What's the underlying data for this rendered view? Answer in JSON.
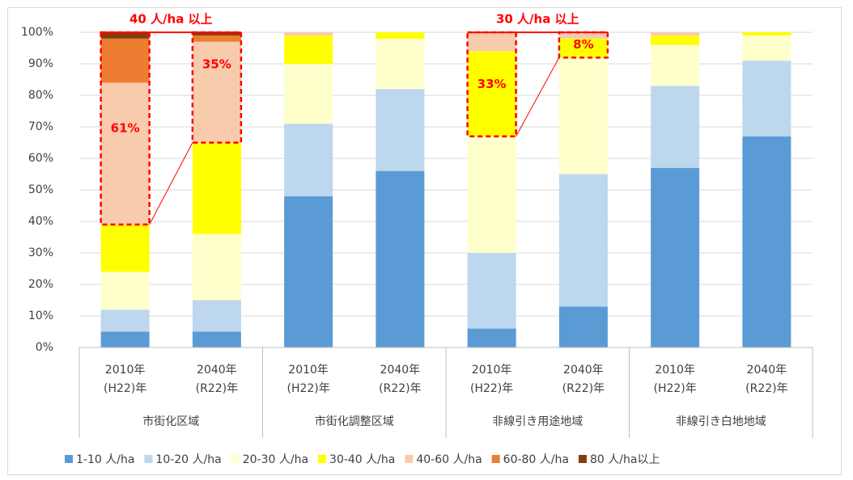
{
  "chart_data": {
    "type": "stacked_bar_100",
    "groups": [
      "市街化区域",
      "市街化調整区域",
      "非線引き用途地域",
      "非線引き白地地域"
    ],
    "categories": [
      [
        "2010年",
        "(H22)年"
      ],
      [
        "2040年",
        "(R22)年"
      ],
      [
        "2010年",
        "(H22)年"
      ],
      [
        "2040年",
        "(R22)年"
      ],
      [
        "2010年",
        "(H22)年"
      ],
      [
        "2040年",
        "(R22)年"
      ],
      [
        "2010年",
        "(H22)年"
      ],
      [
        "2040年",
        "(R22)年"
      ]
    ],
    "series": [
      {
        "name": "1-10 人/ha",
        "color": "#5b9bd5",
        "values": [
          5,
          5,
          48,
          56,
          6,
          13,
          57,
          67
        ]
      },
      {
        "name": "10-20 人/ha",
        "color": "#bdd7ee",
        "values": [
          7,
          10,
          23,
          26,
          24,
          42,
          26,
          24
        ]
      },
      {
        "name": "20-30 人/ha",
        "color": "#ffffcc",
        "values": [
          12,
          21,
          19,
          16,
          37,
          37,
          13,
          8
        ]
      },
      {
        "name": "30-40 人/ha",
        "color": "#ffff00",
        "values": [
          15,
          29,
          9,
          2,
          27,
          6,
          3,
          1
        ]
      },
      {
        "name": "40-60 人/ha",
        "color": "#f8cbad",
        "values": [
          45,
          32,
          1,
          0,
          6,
          2,
          1,
          0
        ]
      },
      {
        "name": "60-80 人/ha",
        "color": "#ed7d31",
        "values": [
          14,
          2,
          0,
          0,
          0,
          0,
          0,
          0
        ]
      },
      {
        "name": "80 人/ha以上",
        "color": "#843c0c",
        "values": [
          2,
          1,
          0,
          0,
          0,
          0,
          0,
          0
        ]
      }
    ],
    "ylim": [
      0,
      100
    ],
    "yticks": [
      {
        "value": 0,
        "label": "0%"
      },
      {
        "value": 10,
        "label": "10%"
      },
      {
        "value": 20,
        "label": "20%"
      },
      {
        "value": 30,
        "label": "30%"
      },
      {
        "value": 40,
        "label": "40%"
      },
      {
        "value": 50,
        "label": "50%"
      },
      {
        "value": 60,
        "label": "60%"
      },
      {
        "value": 70,
        "label": "70%"
      },
      {
        "value": 80,
        "label": "80%"
      },
      {
        "value": 90,
        "label": "90%"
      },
      {
        "value": 100,
        "label": "100%"
      }
    ],
    "grid": true,
    "legend": "bottom",
    "annotations": [
      {
        "text": "40 人/ha 以上",
        "labels": [
          "61%",
          "35%"
        ]
      },
      {
        "text": "30 人/ha 以上",
        "labels": [
          "33%",
          "8%"
        ]
      }
    ]
  }
}
